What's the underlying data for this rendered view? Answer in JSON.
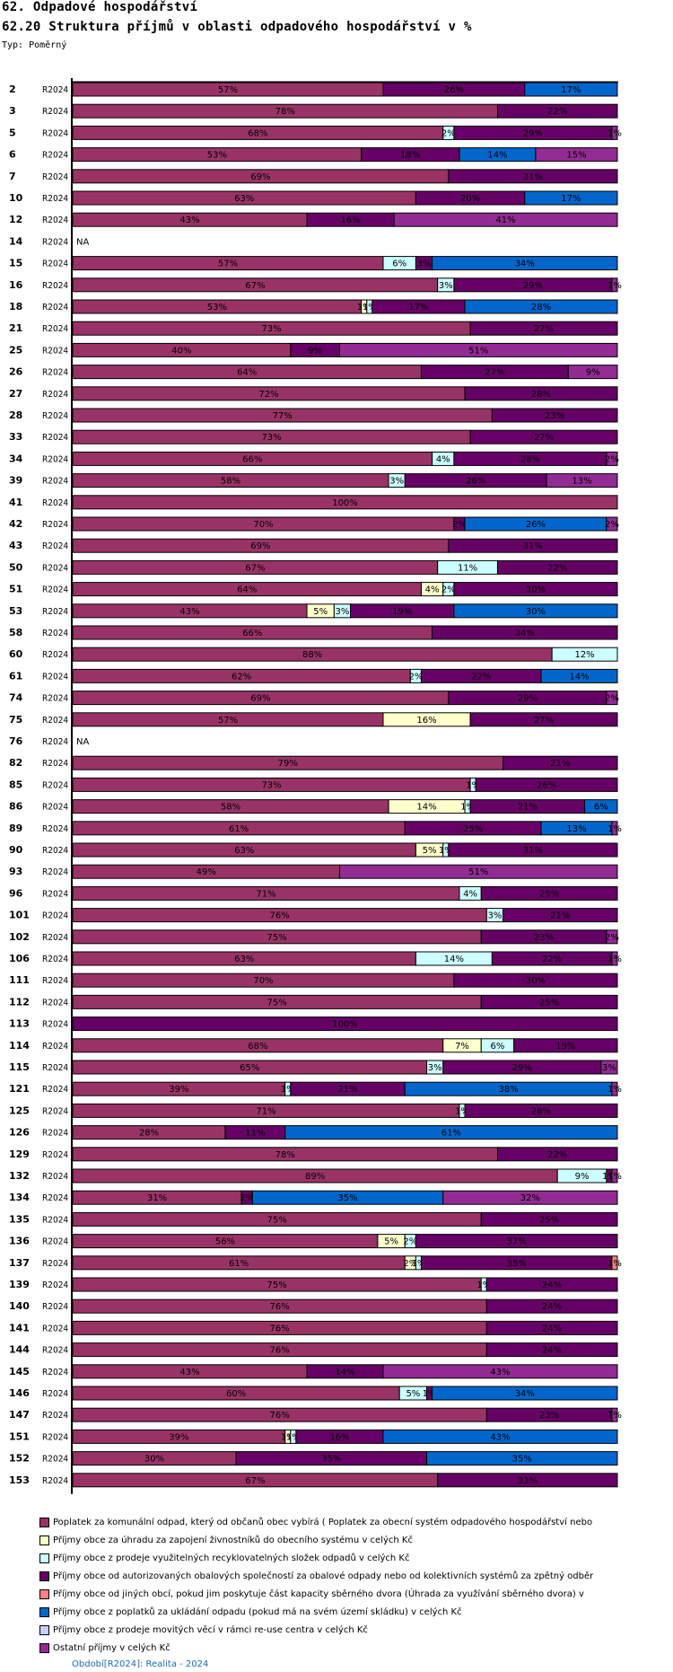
{
  "header": {
    "section_title": "62. Odpadové hospodářství",
    "chart_title": "62.20 Struktura příjmů v oblasti odpadového hospodářství v %",
    "type_label": "Typ: Poměrný"
  },
  "footer": {
    "period_note": "Období[R2024]: Realita - 2024"
  },
  "chart_data": {
    "type": "bar",
    "orientation": "horizontal",
    "stacked": true,
    "normalized_percent": true,
    "title": "62.20 Struktura příjmů v oblasti odpadového hospodářství v %",
    "xlabel": "",
    "ylabel": "",
    "xlim": [
      0,
      100
    ],
    "grid": false,
    "legend_position": "bottom",
    "na_label": "NA",
    "series": [
      {
        "name": "Poplatek za komunální odpad, který od občanů obec vybírá ( Poplatek za obecní systém odpadového hospodářství  nebo",
        "color": "#993366"
      },
      {
        "name": "Příjmy obce za úhradu za zapojení živnostníků do obecního systému v celých Kč",
        "color": "#ffffcc"
      },
      {
        "name": "Příjmy obce z prodeje využitelných recyklovatelných složek odpadů v celých Kč",
        "color": "#ccffff"
      },
      {
        "name": "Příjmy obce od autorizovaných obalových společností za obalové odpady nebo od kolektivních systémů za zpětný odběr",
        "color": "#660066"
      },
      {
        "name": "Příjmy obce od jiných obcí, pokud jim poskytuje část kapacity sběrného dvora (Úhrada za využívání sběrného dvora) v",
        "color": "#ff8080"
      },
      {
        "name": "Příjmy obce z poplatků za ukládání odpadu (pokud má na svém území skládku) v celých Kč",
        "color": "#0066cc"
      },
      {
        "name": "Příjmy obce z prodeje movitých věcí v rámci re-use centra v celých Kč",
        "color": "#ccccff"
      },
      {
        "name": "Ostatní příjmy v celých Kč",
        "color": "#922b93"
      }
    ],
    "rows": [
      {
        "id": "2",
        "period": "R2024",
        "values": [
          57,
          0,
          0,
          26,
          0,
          17,
          0,
          0
        ]
      },
      {
        "id": "3",
        "period": "R2024",
        "values": [
          78,
          0,
          0,
          22,
          0,
          0,
          0,
          0
        ]
      },
      {
        "id": "5",
        "period": "R2024",
        "values": [
          68,
          0,
          2,
          29,
          0,
          0,
          0,
          1
        ]
      },
      {
        "id": "6",
        "period": "R2024",
        "values": [
          53,
          0,
          0,
          18,
          0,
          14,
          0,
          15
        ]
      },
      {
        "id": "7",
        "period": "R2024",
        "values": [
          69,
          0,
          0,
          31,
          0,
          0,
          0,
          0
        ]
      },
      {
        "id": "10",
        "period": "R2024",
        "values": [
          63,
          0,
          0,
          20,
          0,
          17,
          0,
          0
        ]
      },
      {
        "id": "12",
        "period": "R2024",
        "values": [
          43,
          0,
          0,
          16,
          0,
          0,
          0,
          41
        ]
      },
      {
        "id": "14",
        "period": "R2024",
        "values": null
      },
      {
        "id": "15",
        "period": "R2024",
        "values": [
          57,
          0,
          6,
          3,
          0,
          34,
          0,
          0
        ]
      },
      {
        "id": "16",
        "period": "R2024",
        "values": [
          67,
          0,
          3,
          29,
          0,
          0,
          0,
          1
        ]
      },
      {
        "id": "18",
        "period": "R2024",
        "values": [
          53,
          1,
          1,
          17,
          0,
          28,
          0,
          0
        ]
      },
      {
        "id": "21",
        "period": "R2024",
        "values": [
          73,
          0,
          0,
          27,
          0,
          0,
          0,
          0
        ]
      },
      {
        "id": "25",
        "period": "R2024",
        "values": [
          40,
          0,
          0,
          9,
          0,
          0,
          0,
          51
        ]
      },
      {
        "id": "26",
        "period": "R2024",
        "values": [
          64,
          0,
          0,
          27,
          0,
          0,
          0,
          9
        ]
      },
      {
        "id": "27",
        "period": "R2024",
        "values": [
          72,
          0,
          0,
          28,
          0,
          0,
          0,
          0
        ]
      },
      {
        "id": "28",
        "period": "R2024",
        "values": [
          77,
          0,
          0,
          23,
          0,
          0,
          0,
          0
        ]
      },
      {
        "id": "33",
        "period": "R2024",
        "values": [
          73,
          0,
          0,
          27,
          0,
          0,
          0,
          0
        ]
      },
      {
        "id": "34",
        "period": "R2024",
        "values": [
          66,
          0,
          4,
          28,
          0,
          0,
          0,
          2
        ]
      },
      {
        "id": "39",
        "period": "R2024",
        "values": [
          58,
          0,
          3,
          26,
          0,
          0,
          0,
          13
        ]
      },
      {
        "id": "41",
        "period": "R2024",
        "values": [
          100,
          0,
          0,
          0,
          0,
          0,
          0,
          0
        ]
      },
      {
        "id": "42",
        "period": "R2024",
        "values": [
          70,
          0,
          0,
          2,
          0,
          26,
          0,
          2
        ]
      },
      {
        "id": "43",
        "period": "R2024",
        "values": [
          69,
          0,
          0,
          31,
          0,
          0,
          0,
          0
        ]
      },
      {
        "id": "50",
        "period": "R2024",
        "values": [
          67,
          0,
          11,
          22,
          0,
          0,
          0,
          0
        ]
      },
      {
        "id": "51",
        "period": "R2024",
        "values": [
          64,
          4,
          2,
          30,
          0,
          0,
          0,
          0
        ]
      },
      {
        "id": "53",
        "period": "R2024",
        "values": [
          43,
          5,
          3,
          19,
          0,
          30,
          0,
          0
        ]
      },
      {
        "id": "58",
        "period": "R2024",
        "values": [
          66,
          0,
          0,
          34,
          0,
          0,
          0,
          0
        ]
      },
      {
        "id": "60",
        "period": "R2024",
        "values": [
          88,
          0,
          12,
          0,
          0,
          0,
          0,
          0
        ]
      },
      {
        "id": "61",
        "period": "R2024",
        "values": [
          62,
          0,
          2,
          22,
          0,
          14,
          0,
          0
        ]
      },
      {
        "id": "74",
        "period": "R2024",
        "values": [
          69,
          0,
          0,
          29,
          0,
          0,
          0,
          2
        ]
      },
      {
        "id": "75",
        "period": "R2024",
        "values": [
          57,
          16,
          0,
          27,
          0,
          0,
          0,
          0
        ]
      },
      {
        "id": "76",
        "period": "R2024",
        "values": null
      },
      {
        "id": "82",
        "period": "R2024",
        "values": [
          79,
          0,
          0,
          21,
          0,
          0,
          0,
          0
        ]
      },
      {
        "id": "85",
        "period": "R2024",
        "values": [
          73,
          0,
          1,
          26,
          0,
          0,
          0,
          0
        ]
      },
      {
        "id": "86",
        "period": "R2024",
        "values": [
          58,
          14,
          1,
          21,
          0,
          6,
          0,
          0
        ]
      },
      {
        "id": "89",
        "period": "R2024",
        "values": [
          61,
          0,
          0,
          25,
          0,
          13,
          0,
          1
        ]
      },
      {
        "id": "90",
        "period": "R2024",
        "values": [
          63,
          5,
          1,
          31,
          0,
          0,
          0,
          0
        ]
      },
      {
        "id": "93",
        "period": "R2024",
        "values": [
          49,
          0,
          0,
          0,
          0,
          0,
          0,
          51
        ]
      },
      {
        "id": "96",
        "period": "R2024",
        "values": [
          71,
          0,
          4,
          25,
          0,
          0,
          0,
          0
        ]
      },
      {
        "id": "101",
        "period": "R2024",
        "values": [
          76,
          0,
          3,
          21,
          0,
          0,
          0,
          0
        ]
      },
      {
        "id": "102",
        "period": "R2024",
        "values": [
          75,
          0,
          0,
          23,
          0,
          0,
          0,
          2
        ]
      },
      {
        "id": "106",
        "period": "R2024",
        "values": [
          63,
          0,
          14,
          22,
          0,
          0,
          0,
          1
        ]
      },
      {
        "id": "111",
        "period": "R2024",
        "values": [
          70,
          0,
          0,
          30,
          0,
          0,
          0,
          0
        ]
      },
      {
        "id": "112",
        "period": "R2024",
        "values": [
          75,
          0,
          0,
          25,
          0,
          0,
          0,
          0
        ]
      },
      {
        "id": "113",
        "period": "R2024",
        "values": [
          0,
          0,
          0,
          100,
          0,
          0,
          0,
          0
        ]
      },
      {
        "id": "114",
        "period": "R2024",
        "values": [
          68,
          7,
          6,
          19,
          0,
          0,
          0,
          0
        ]
      },
      {
        "id": "115",
        "period": "R2024",
        "values": [
          65,
          0,
          3,
          29,
          0,
          0,
          0,
          3
        ]
      },
      {
        "id": "121",
        "period": "R2024",
        "values": [
          39,
          0,
          1,
          21,
          0,
          38,
          0,
          1
        ]
      },
      {
        "id": "125",
        "period": "R2024",
        "values": [
          71,
          0,
          1,
          28,
          0,
          0,
          0,
          0
        ]
      },
      {
        "id": "126",
        "period": "R2024",
        "values": [
          28,
          0,
          0,
          11,
          0,
          61,
          0,
          0
        ]
      },
      {
        "id": "129",
        "period": "R2024",
        "values": [
          78,
          0,
          0,
          22,
          0,
          0,
          0,
          0
        ]
      },
      {
        "id": "132",
        "period": "R2024",
        "values": [
          89,
          0,
          9,
          1,
          0,
          0,
          0,
          1
        ]
      },
      {
        "id": "134",
        "period": "R2024",
        "values": [
          31,
          0,
          0,
          2,
          0,
          35,
          0,
          32
        ]
      },
      {
        "id": "135",
        "period": "R2024",
        "values": [
          75,
          0,
          0,
          25,
          0,
          0,
          0,
          0
        ]
      },
      {
        "id": "136",
        "period": "R2024",
        "values": [
          56,
          5,
          2,
          37,
          0,
          0,
          0,
          0
        ]
      },
      {
        "id": "137",
        "period": "R2024",
        "values": [
          61,
          2,
          1,
          35,
          1,
          0,
          0,
          0
        ]
      },
      {
        "id": "139",
        "period": "R2024",
        "values": [
          75,
          0,
          1,
          24,
          0,
          0,
          0,
          0
        ]
      },
      {
        "id": "140",
        "period": "R2024",
        "values": [
          76,
          0,
          0,
          24,
          0,
          0,
          0,
          0
        ]
      },
      {
        "id": "141",
        "period": "R2024",
        "values": [
          76,
          0,
          0,
          24,
          0,
          0,
          0,
          0
        ]
      },
      {
        "id": "144",
        "period": "R2024",
        "values": [
          76,
          0,
          0,
          24,
          0,
          0,
          0,
          0
        ]
      },
      {
        "id": "145",
        "period": "R2024",
        "values": [
          43,
          0,
          0,
          14,
          0,
          0,
          0,
          43
        ]
      },
      {
        "id": "146",
        "period": "R2024",
        "values": [
          60,
          0,
          5,
          1,
          0,
          34,
          0,
          0
        ]
      },
      {
        "id": "147",
        "period": "R2024",
        "values": [
          76,
          0,
          0,
          23,
          0,
          0,
          0,
          1
        ]
      },
      {
        "id": "151",
        "period": "R2024",
        "values": [
          39,
          1,
          1,
          16,
          0,
          43,
          0,
          0
        ]
      },
      {
        "id": "152",
        "period": "R2024",
        "values": [
          30,
          0,
          0,
          35,
          0,
          35,
          0,
          0
        ]
      },
      {
        "id": "153",
        "period": "R2024",
        "values": [
          67,
          0,
          0,
          33,
          0,
          0,
          0,
          0
        ]
      }
    ]
  }
}
